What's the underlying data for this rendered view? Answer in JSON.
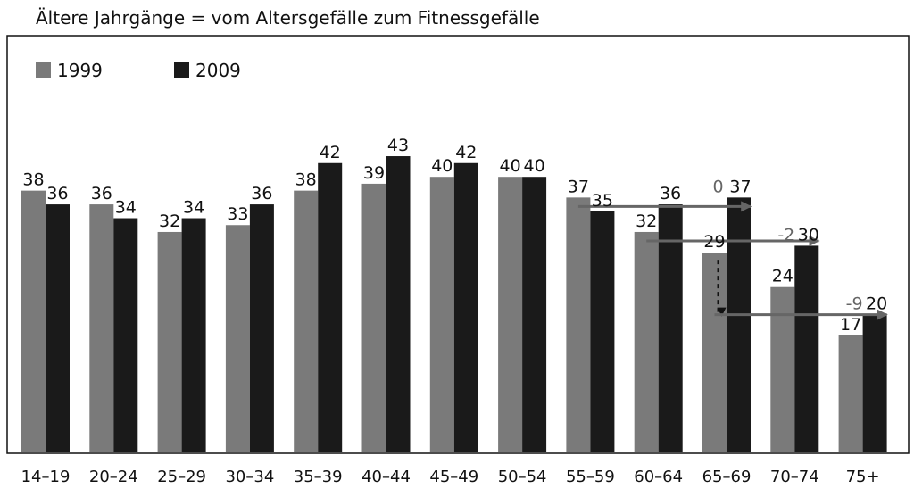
{
  "chart_data": {
    "type": "bar",
    "title": "Ältere Jahrgänge = vom Altersgefälle zum Fitnessgefälle",
    "xlabel": "",
    "ylabel": "",
    "ylim": [
      0,
      45
    ],
    "grid": false,
    "legend_position": "top-left",
    "categories": [
      "14–19",
      "20–24",
      "25–29",
      "30–34",
      "35–39",
      "40–44",
      "45–49",
      "50–54",
      "55–59",
      "60–64",
      "65–69",
      "70–74",
      "75+"
    ],
    "series": [
      {
        "name": "1999",
        "color": "#7a7a7a",
        "values": [
          38,
          36,
          32,
          33,
          38,
          39,
          40,
          40,
          37,
          32,
          29,
          24,
          17
        ]
      },
      {
        "name": "2009",
        "color": "#1a1a1a",
        "values": [
          36,
          34,
          34,
          36,
          42,
          43,
          42,
          40,
          35,
          36,
          37,
          30,
          20
        ]
      }
    ],
    "annotations": [
      {
        "text": "0",
        "from_category": "55–59",
        "from_series": "1999",
        "to_category": "65–69",
        "to_series": "2009"
      },
      {
        "text": "-2",
        "from_category": "60–64",
        "from_series": "1999",
        "to_category": "70–74",
        "to_series": "2009"
      },
      {
        "text": "-9",
        "from_category": "65–69",
        "from_series": "1999",
        "to_category": "75+",
        "to_series": "2009"
      }
    ],
    "arrow_color": "#666666"
  }
}
